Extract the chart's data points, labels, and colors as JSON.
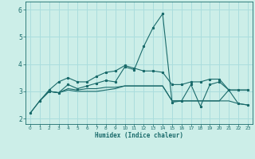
{
  "xlabel": "Humidex (Indice chaleur)",
  "background_color": "#cceee8",
  "grid_color": "#aadddd",
  "line_color": "#1a6b6b",
  "xlim": [
    -0.5,
    23.5
  ],
  "ylim": [
    1.8,
    6.3
  ],
  "yticks": [
    2,
    3,
    4,
    5,
    6
  ],
  "xticks": [
    0,
    1,
    2,
    3,
    4,
    5,
    6,
    7,
    8,
    9,
    10,
    11,
    12,
    13,
    14,
    15,
    16,
    17,
    18,
    19,
    20,
    21,
    22,
    23
  ],
  "line1_x": [
    0,
    1,
    2,
    3,
    4,
    5,
    6,
    7,
    8,
    9,
    10,
    11,
    12,
    13,
    14,
    15,
    16,
    17,
    18,
    19,
    20,
    21,
    22,
    23
  ],
  "line1_y": [
    2.2,
    2.65,
    3.0,
    2.95,
    3.25,
    3.1,
    3.2,
    3.3,
    3.4,
    3.35,
    3.9,
    3.8,
    4.65,
    5.35,
    5.85,
    2.6,
    2.65,
    3.25,
    2.45,
    3.25,
    3.35,
    3.05,
    2.55,
    2.5
  ],
  "line2_x": [
    0,
    1,
    2,
    3,
    4,
    5,
    6,
    7,
    8,
    9,
    10,
    11,
    12,
    13,
    14,
    15,
    16,
    17,
    18,
    19,
    20,
    21,
    22,
    23
  ],
  "line2_y": [
    2.2,
    2.65,
    3.0,
    2.95,
    3.1,
    3.05,
    3.1,
    3.1,
    3.15,
    3.15,
    3.2,
    3.2,
    3.2,
    3.2,
    3.2,
    2.65,
    2.65,
    2.65,
    2.65,
    2.65,
    2.65,
    2.65,
    2.55,
    2.5
  ],
  "line3_x": [
    1,
    2,
    3,
    4,
    5,
    6,
    7,
    8,
    9,
    10,
    11,
    12,
    13,
    14,
    15,
    16,
    17,
    18,
    19,
    20,
    21,
    22,
    23
  ],
  "line3_y": [
    2.65,
    3.05,
    3.35,
    3.5,
    3.35,
    3.35,
    3.55,
    3.7,
    3.75,
    3.95,
    3.85,
    3.75,
    3.75,
    3.7,
    3.25,
    3.25,
    3.35,
    3.35,
    3.45,
    3.45,
    3.05,
    3.05,
    3.05
  ],
  "line4_x": [
    1,
    2,
    3,
    4,
    5,
    6,
    7,
    8,
    9,
    10,
    11,
    12,
    13,
    14,
    15,
    16,
    17,
    18,
    19,
    20,
    21,
    22,
    23
  ],
  "line4_y": [
    2.65,
    3.0,
    2.95,
    3.05,
    3.0,
    3.0,
    3.0,
    3.05,
    3.1,
    3.2,
    3.2,
    3.2,
    3.2,
    3.2,
    2.65,
    2.65,
    2.65,
    2.65,
    2.65,
    2.65,
    3.05,
    3.05,
    3.05
  ]
}
